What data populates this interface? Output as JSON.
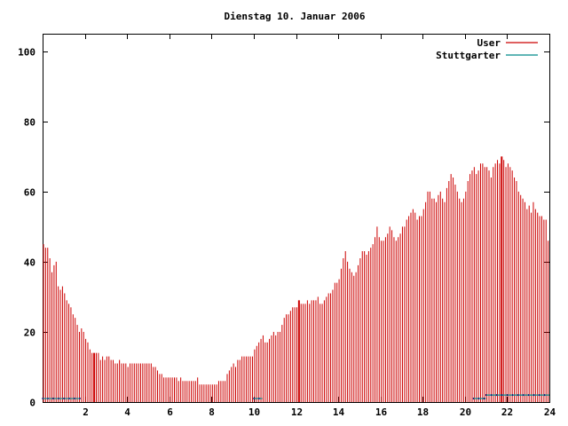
{
  "chart_data": {
    "type": "bar",
    "title": "Dienstag 10. Januar 2006",
    "xlabel": "",
    "ylabel": "",
    "xlim": [
      0,
      24
    ],
    "ylim": [
      0,
      105
    ],
    "xticks": [
      2,
      4,
      6,
      8,
      10,
      12,
      14,
      16,
      18,
      20,
      22,
      24
    ],
    "yticks": [
      0,
      20,
      40,
      60,
      80,
      100
    ],
    "grid": false,
    "legend_position": "top-right",
    "series": [
      {
        "name": "User",
        "color": "#cc0000",
        "x": [
          0.0,
          0.1,
          0.2,
          0.3,
          0.4,
          0.5,
          0.6,
          0.7,
          0.8,
          0.9,
          1.0,
          1.1,
          1.2,
          1.3,
          1.4,
          1.5,
          1.6,
          1.7,
          1.8,
          1.9,
          2.0,
          2.1,
          2.2,
          2.3,
          2.4,
          2.5,
          2.6,
          2.7,
          2.8,
          2.9,
          3.0,
          3.1,
          3.2,
          3.3,
          3.4,
          3.5,
          3.6,
          3.7,
          3.8,
          3.9,
          4.0,
          4.1,
          4.2,
          4.3,
          4.4,
          4.5,
          4.6,
          4.7,
          4.8,
          4.9,
          5.0,
          5.1,
          5.2,
          5.3,
          5.4,
          5.5,
          5.6,
          5.7,
          5.8,
          5.9,
          6.0,
          6.1,
          6.2,
          6.3,
          6.4,
          6.5,
          6.6,
          6.7,
          6.8,
          6.9,
          7.0,
          7.1,
          7.2,
          7.3,
          7.4,
          7.5,
          7.6,
          7.7,
          7.8,
          7.9,
          8.0,
          8.1,
          8.2,
          8.3,
          8.4,
          8.5,
          8.6,
          8.7,
          8.8,
          8.9,
          9.0,
          9.1,
          9.2,
          9.3,
          9.4,
          9.5,
          9.6,
          9.7,
          9.8,
          9.9,
          10.0,
          10.1,
          10.2,
          10.3,
          10.4,
          10.5,
          10.6,
          10.7,
          10.8,
          10.9,
          11.0,
          11.1,
          11.2,
          11.3,
          11.4,
          11.5,
          11.6,
          11.7,
          11.8,
          11.9,
          12.0,
          12.1,
          12.2,
          12.3,
          12.4,
          12.5,
          12.6,
          12.7,
          12.8,
          12.9,
          13.0,
          13.1,
          13.2,
          13.3,
          13.4,
          13.5,
          13.6,
          13.7,
          13.8,
          13.9,
          14.0,
          14.1,
          14.2,
          14.3,
          14.4,
          14.5,
          14.6,
          14.7,
          14.8,
          14.9,
          15.0,
          15.1,
          15.2,
          15.3,
          15.4,
          15.5,
          15.6,
          15.7,
          15.8,
          15.9,
          16.0,
          16.1,
          16.2,
          16.3,
          16.4,
          16.5,
          16.6,
          16.7,
          16.8,
          16.9,
          17.0,
          17.1,
          17.2,
          17.3,
          17.4,
          17.5,
          17.6,
          17.7,
          17.8,
          17.9,
          18.0,
          18.1,
          18.2,
          18.3,
          18.4,
          18.5,
          18.6,
          18.7,
          18.8,
          18.9,
          19.0,
          19.1,
          19.2,
          19.3,
          19.4,
          19.5,
          19.6,
          19.7,
          19.8,
          19.9,
          20.0,
          20.1,
          20.2,
          20.3,
          20.4,
          20.5,
          20.6,
          20.7,
          20.8,
          20.9,
          21.0,
          21.1,
          21.2,
          21.3,
          21.4,
          21.5,
          21.6,
          21.7,
          21.8,
          21.9,
          22.0,
          22.1,
          22.2,
          22.3,
          22.4,
          22.5,
          22.6,
          22.7,
          22.8,
          22.9,
          23.0,
          23.1,
          23.2,
          23.3,
          23.4,
          23.5,
          23.6,
          23.7,
          23.8,
          23.9
        ],
        "values": [
          45,
          44,
          44,
          41,
          37,
          39,
          40,
          33,
          32,
          33,
          31,
          29,
          28,
          27,
          25,
          24,
          22,
          20,
          21,
          20,
          18,
          17,
          15,
          14,
          13,
          14,
          14,
          12,
          13,
          12,
          13,
          13,
          12,
          12,
          11,
          11,
          12,
          11,
          11,
          11,
          10,
          11,
          11,
          11,
          11,
          11,
          11,
          11,
          11,
          11,
          11,
          11,
          10,
          10,
          9,
          8,
          8,
          7,
          7,
          7,
          7,
          7,
          7,
          7,
          6,
          7,
          6,
          6,
          6,
          6,
          6,
          6,
          6,
          7,
          5,
          5,
          5,
          5,
          5,
          5,
          5,
          5,
          5,
          6,
          6,
          6,
          6,
          8,
          9,
          10,
          11,
          10,
          12,
          12,
          13,
          13,
          13,
          13,
          13,
          13,
          15,
          16,
          17,
          18,
          19,
          17,
          17,
          18,
          19,
          20,
          19,
          20,
          20,
          22,
          24,
          25,
          25,
          26,
          27,
          27,
          27,
          27,
          28,
          28,
          28,
          29,
          28,
          29,
          29,
          29,
          30,
          28,
          28,
          29,
          30,
          31,
          31,
          32,
          34,
          34,
          35,
          38,
          41,
          43,
          40,
          38,
          37,
          36,
          37,
          39,
          41,
          43,
          43,
          42,
          43,
          44,
          45,
          47,
          50,
          47,
          46,
          46,
          47,
          48,
          50,
          49,
          47,
          46,
          47,
          48,
          50,
          50,
          52,
          53,
          54,
          55,
          54,
          52,
          53,
          53,
          55,
          57,
          60,
          60,
          58,
          58,
          57,
          59,
          60,
          58,
          57,
          61,
          63,
          65,
          64,
          62,
          60,
          58,
          57,
          58,
          60,
          63,
          65,
          66,
          67,
          65,
          66,
          68,
          68,
          67,
          67,
          66,
          64,
          67,
          68,
          69,
          68,
          70,
          69,
          67,
          68,
          67,
          66,
          64,
          63,
          60,
          59,
          58,
          57,
          55,
          56,
          54,
          57,
          55,
          54,
          53,
          53,
          52,
          52,
          46
        ],
        "spike_x": [
          2.4,
          12.1,
          21.7
        ],
        "spike_values": [
          14,
          29,
          70
        ]
      },
      {
        "name": "Stuttgarter",
        "color": "#008b8b",
        "segments": [
          {
            "x": [
              0.0,
              1.8
            ],
            "value": 1
          },
          {
            "x": [
              10.0,
              10.4
            ],
            "value": 1
          },
          {
            "x": [
              20.4,
              21.0
            ],
            "value": 1
          },
          {
            "x": [
              21.0,
              24.0
            ],
            "value": 2
          }
        ]
      }
    ]
  }
}
